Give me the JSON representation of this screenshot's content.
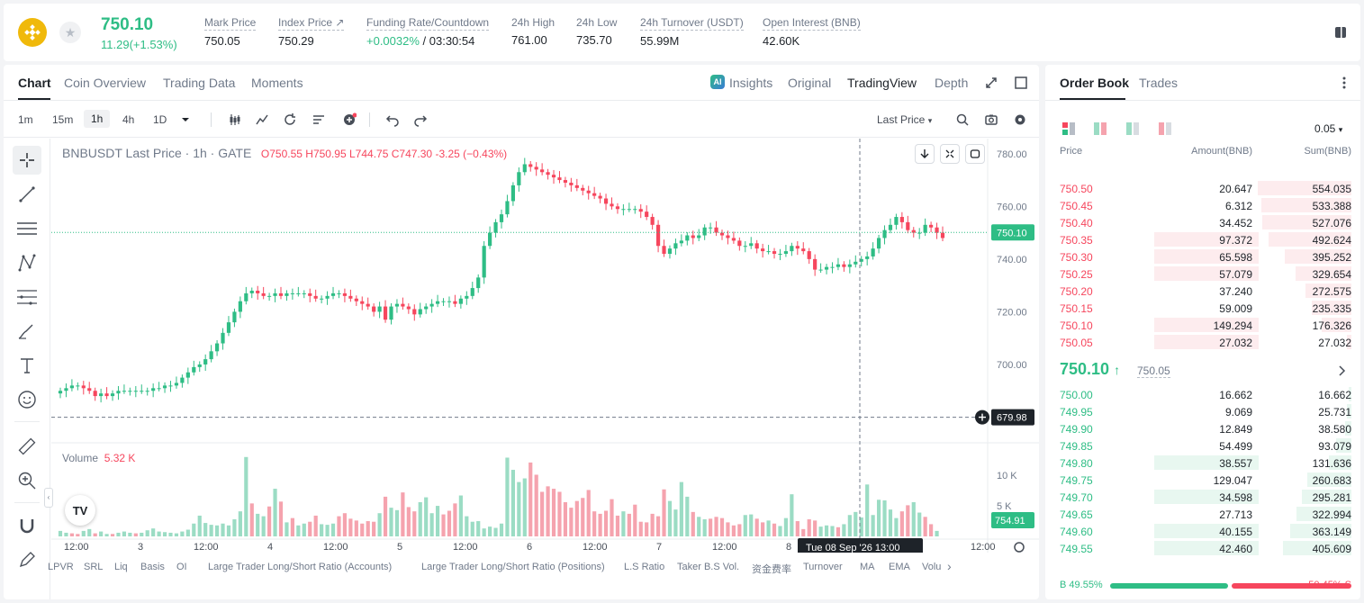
{
  "header": {
    "last_price": "750.10",
    "change": "11.29(+1.53%)",
    "stats": [
      {
        "label": "Mark Price",
        "value": "750.05"
      },
      {
        "label": "Index Price ↗",
        "value": "750.29"
      },
      {
        "label": "Funding Rate/Countdown",
        "value_green": "+0.0032%",
        "value": " / 03:30:54"
      },
      {
        "label": "24h High",
        "value": "761.00"
      },
      {
        "label": "24h Low",
        "value": "735.70"
      },
      {
        "label": "24h Turnover (USDT)",
        "value": "55.99M"
      },
      {
        "label": "Open Interest (BNB)",
        "value": "42.60K"
      }
    ]
  },
  "chart_panel": {
    "tabs": [
      "Chart",
      "Coin Overview",
      "Trading Data",
      "Moments"
    ],
    "views": [
      "Insights",
      "Original",
      "TradingView",
      "Depth"
    ],
    "ai_badge": "AI",
    "intervals": [
      "1m",
      "15m",
      "1h",
      "4h",
      "1D"
    ],
    "price_source": "Last Price"
  },
  "chart_legend": {
    "title": "BNBUSDT Last Price · 1h · GATE",
    "o": "O750.55",
    "h": "H750.95",
    "l": "L744.75",
    "c": "C747.30",
    "chg": "-3.25 (−0.43%)"
  },
  "volume_legend": {
    "label": "Volume",
    "value": "5.32 K"
  },
  "indicators": [
    "LPVR",
    "SRL",
    "Liq",
    "Basis",
    "OI",
    "Large Trader Long/Short Ratio (Accounts)",
    "Large Trader Long/Short Ratio (Positions)",
    "L.S Ratio",
    "Taker B.S Vol.",
    "资金费率",
    "Turnover",
    "MA",
    "EMA",
    "Volu"
  ],
  "chart_data": {
    "type": "candlestick",
    "title": "BNBUSDT Last Price · 1h · GATE",
    "y_ticks": [
      "780.00",
      "760.00",
      "740.00",
      "720.00",
      "700.00"
    ],
    "volume_ticks": [
      "10 K",
      "5 K"
    ],
    "x_ticks": [
      "12:00",
      "3",
      "12:00",
      "4",
      "12:00",
      "5",
      "12:00",
      "6",
      "12:00",
      "7",
      "12:00",
      "8",
      "12:00"
    ],
    "crosshair_time": "Tue 08 Sep '26   13:00",
    "crosshair_price": "679.98",
    "last_price_label": "750.10",
    "volume_last_label": "754.91",
    "ylim": [
      673,
      783
    ],
    "closes": [
      690,
      691,
      692,
      692,
      691,
      690,
      688,
      689,
      688,
      689,
      690,
      690,
      690,
      690,
      690,
      690,
      691,
      691,
      692,
      692,
      693,
      695,
      697,
      699,
      700,
      702,
      705,
      708,
      712,
      716,
      720,
      724,
      727,
      728,
      727,
      726,
      726,
      727,
      726,
      727,
      727,
      727,
      727,
      726,
      725,
      725,
      726,
      727,
      727,
      726,
      725,
      724,
      723,
      722,
      720,
      722,
      717,
      722,
      723,
      722,
      721,
      719,
      721,
      722,
      723,
      724,
      724,
      724,
      723,
      725,
      726,
      729,
      733,
      745,
      750,
      754,
      757,
      762,
      768,
      773,
      776,
      775,
      774,
      773,
      772,
      771,
      770,
      769,
      768,
      767,
      766,
      765,
      764,
      763,
      761,
      760,
      759,
      759,
      759,
      759,
      758,
      756,
      753,
      745,
      742,
      744,
      746,
      747,
      749,
      748,
      749,
      752,
      752,
      750,
      749,
      748,
      747,
      745,
      745,
      746,
      744,
      743,
      743,
      742,
      742,
      743,
      745,
      744,
      743,
      740,
      736,
      736,
      737,
      737,
      738,
      737,
      738,
      739,
      740,
      741,
      744,
      748,
      751,
      753,
      756,
      754,
      751,
      750,
      750,
      753,
      752,
      750,
      748
    ],
    "volumes": [
      900,
      600,
      500,
      400,
      900,
      1200,
      500,
      800,
      400,
      400,
      600,
      800,
      600,
      500,
      600,
      1000,
      1300,
      800,
      700,
      600,
      500,
      800,
      1100,
      2100,
      3400,
      2200,
      1900,
      1800,
      2100,
      1800,
      2800,
      4100,
      13000,
      5400,
      3700,
      3300,
      4900,
      7800,
      5700,
      2300,
      3000,
      1800,
      2100,
      2400,
      3400,
      2000,
      1900,
      2100,
      3300,
      3800,
      2900,
      2600,
      2100,
      2500,
      2400,
      3800,
      6500,
      4700,
      4300,
      7200,
      4800,
      4100,
      5600,
      6400,
      3800,
      5000,
      3600,
      4200,
      5400,
      6700,
      3300,
      2400,
      2500,
      1300,
      1600,
      1400,
      2100,
      12900,
      10900,
      8900,
      9500,
      12100,
      10100,
      7300,
      8200,
      7800,
      7300,
      5600,
      4700,
      5800,
      6300,
      7600,
      4100,
      3700,
      4200,
      6100,
      3400,
      4100,
      3700,
      5200,
      2400,
      2300,
      3700,
      3300,
      7700,
      5800,
      4400,
      8900,
      6500,
      4000,
      3200,
      2800,
      2900,
      3200,
      3000,
      2300,
      1800,
      2000,
      3500,
      3600,
      2900,
      2300,
      2600,
      2100,
      1700,
      3000,
      6900,
      2500,
      1200,
      2800,
      2600,
      1600,
      1800,
      1700,
      1500,
      2000,
      3500,
      4000,
      3100,
      8500,
      3500,
      6000,
      5900,
      4400,
      3000,
      4100,
      5100,
      5600,
      3900,
      3200,
      2000,
      900
    ],
    "volume_up": [
      true,
      true,
      false,
      false,
      true,
      true,
      false,
      true,
      true,
      false,
      true,
      true,
      true,
      false,
      true,
      true,
      true,
      true,
      true,
      true,
      true,
      true,
      true,
      true,
      true,
      true,
      true,
      true,
      true,
      true,
      true,
      true,
      true,
      false,
      true,
      true,
      false,
      true,
      false,
      true,
      false,
      true,
      true,
      false,
      false,
      true,
      true,
      true,
      false,
      false,
      false,
      false,
      false,
      false,
      false,
      true,
      false,
      true,
      true,
      false,
      false,
      false,
      true,
      true,
      true,
      true,
      false,
      false,
      false,
      true,
      true,
      true,
      true,
      true,
      true,
      true,
      true,
      true,
      true,
      true,
      true,
      false,
      false,
      false,
      false,
      false,
      false,
      false,
      false,
      false,
      false,
      false,
      false,
      false,
      false,
      false,
      false,
      true,
      false,
      false,
      false,
      false,
      false,
      false,
      false,
      true,
      true,
      true,
      true,
      false,
      true,
      true,
      false,
      false,
      false,
      false,
      false,
      false,
      true,
      true,
      false,
      false,
      true,
      false,
      true,
      true,
      true,
      false,
      false,
      false,
      false,
      true,
      true,
      true,
      false,
      true,
      true,
      true,
      true,
      true,
      true,
      true,
      true,
      true,
      true,
      false,
      false,
      true,
      true,
      false,
      false,
      true,
      false
    ]
  },
  "order_book": {
    "tabs": [
      "Order Book",
      "Trades"
    ],
    "tick": "0.05",
    "headers": [
      "Price",
      "Amount(BNB)",
      "Sum(BNB)"
    ],
    "asks": [
      {
        "price": "750.50",
        "amount": "20.647",
        "sum": "554.035",
        "afrac": 0.0
      },
      {
        "price": "750.45",
        "amount": "6.312",
        "sum": "533.388",
        "afrac": 0.0
      },
      {
        "price": "750.40",
        "amount": "34.452",
        "sum": "527.076",
        "afrac": 0.0
      },
      {
        "price": "750.35",
        "amount": "97.372",
        "sum": "492.624",
        "afrac": 0.65
      },
      {
        "price": "750.30",
        "amount": "65.598",
        "sum": "395.252",
        "afrac": 0.44
      },
      {
        "price": "750.25",
        "amount": "57.079",
        "sum": "329.654",
        "afrac": 0.38
      },
      {
        "price": "750.20",
        "amount": "37.240",
        "sum": "272.575",
        "afrac": 0.0
      },
      {
        "price": "750.15",
        "amount": "59.009",
        "sum": "235.335",
        "afrac": 0.0
      },
      {
        "price": "750.10",
        "amount": "149.294",
        "sum": "176.326",
        "afrac": 0.45
      },
      {
        "price": "750.05",
        "amount": "27.032",
        "sum": "27.032",
        "afrac": 0.4
      }
    ],
    "mid_price": "750.10",
    "mid_mark": "750.05",
    "bids": [
      {
        "price": "750.00",
        "amount": "16.662",
        "sum": "16.662",
        "afrac": 0.0
      },
      {
        "price": "749.95",
        "amount": "9.069",
        "sum": "25.731",
        "afrac": 0.0
      },
      {
        "price": "749.90",
        "amount": "12.849",
        "sum": "38.580",
        "afrac": 0.0
      },
      {
        "price": "749.85",
        "amount": "54.499",
        "sum": "93.079",
        "afrac": 0.0
      },
      {
        "price": "749.80",
        "amount": "38.557",
        "sum": "131.636",
        "afrac": 0.4
      },
      {
        "price": "749.75",
        "amount": "129.047",
        "sum": "260.683",
        "afrac": 0.0
      },
      {
        "price": "749.70",
        "amount": "34.598",
        "sum": "295.281",
        "afrac": 0.4
      },
      {
        "price": "749.65",
        "amount": "27.713",
        "sum": "322.994",
        "afrac": 0.0
      },
      {
        "price": "749.60",
        "amount": "40.155",
        "sum": "363.149",
        "afrac": 0.4
      },
      {
        "price": "749.55",
        "amount": "42.460",
        "sum": "405.609",
        "afrac": 0.4
      }
    ],
    "buy_ratio": "49.55%",
    "sell_ratio": "50.45%",
    "buy_label": "B",
    "sell_label": "S",
    "buy_fraction": 0.4955
  },
  "colors": {
    "up": "#2ebd85",
    "down": "#f6465d",
    "up_vol": "#9bdcc4",
    "down_vol": "#f5a3ae"
  }
}
